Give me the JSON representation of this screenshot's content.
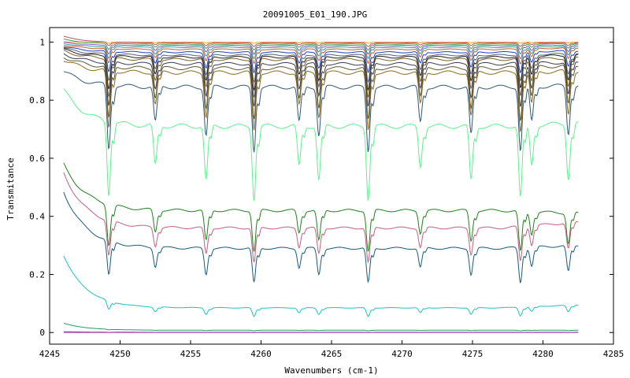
{
  "chart_data": {
    "type": "line",
    "title": "20091005_E01_190.JPG",
    "xlabel": "Wavenumbers (cm-1)",
    "ylabel": "Transmitance",
    "xlim": [
      4245,
      4285
    ],
    "ylim": [
      -0.04,
      1.05
    ],
    "grid": false,
    "legend": "none",
    "x_ticks": [
      4245,
      4250,
      4255,
      4260,
      4265,
      4270,
      4275,
      4280,
      4285
    ],
    "y_ticks": [
      0,
      0.2,
      0.4,
      0.6,
      0.8,
      1
    ],
    "x_range": [
      4246,
      4282.5
    ],
    "line_centers": [
      4249.2,
      4252.5,
      4256.1,
      4259.5,
      4262.7,
      4264.1,
      4267.6,
      4271.3,
      4274.9,
      4278.4,
      4279.2,
      4281.8
    ],
    "series": [
      {
        "color": "#e8a040",
        "start": 1.0,
        "end": 1.0,
        "level": 1.0,
        "depth": 0.004
      },
      {
        "color": "#c05060",
        "start": 1.02,
        "end": 0.998,
        "level": 0.997,
        "depth": 0.012
      },
      {
        "color": "#40a040",
        "start": 1.01,
        "end": 0.995,
        "level": 0.993,
        "depth": 0.02
      },
      {
        "color": "#8050c0",
        "start": 1.0,
        "end": 0.99,
        "level": 0.988,
        "depth": 0.03
      },
      {
        "color": "#30a0a0",
        "start": 0.995,
        "end": 0.985,
        "level": 0.982,
        "depth": 0.04
      },
      {
        "color": "#c06030",
        "start": 0.99,
        "end": 0.98,
        "level": 0.975,
        "depth": 0.05
      },
      {
        "color": "#2040c0",
        "start": 0.985,
        "end": 0.97,
        "level": 0.965,
        "depth": 0.07
      },
      {
        "color": "#506070",
        "start": 0.98,
        "end": 0.96,
        "level": 0.955,
        "depth": 0.09
      },
      {
        "color": "#202020",
        "start": 0.975,
        "end": 0.955,
        "level": 0.948,
        "depth": 0.11
      },
      {
        "color": "#7a6030",
        "start": 0.97,
        "end": 0.945,
        "level": 0.94,
        "depth": 0.13
      },
      {
        "color": "#3a3a5a",
        "start": 0.96,
        "end": 0.93,
        "level": 0.925,
        "depth": 0.15
      },
      {
        "color": "#5a5a30",
        "start": 0.95,
        "end": 0.92,
        "level": 0.91,
        "depth": 0.18
      },
      {
        "color": "#8a6a20",
        "start": 0.94,
        "end": 0.9,
        "level": 0.895,
        "depth": 0.2
      },
      {
        "color": "#305878",
        "start": 0.9,
        "end": 0.85,
        "level": 0.845,
        "depth": 0.22
      },
      {
        "color": "#60f090",
        "start": 0.835,
        "end": 0.72,
        "level": 0.71,
        "depth": 0.25
      },
      {
        "color": "#208020",
        "start": 0.58,
        "end": 0.41,
        "level": 0.42,
        "depth": 0.14
      },
      {
        "color": "#c06080",
        "start": 0.55,
        "end": 0.38,
        "level": 0.36,
        "depth": 0.12
      },
      {
        "color": "#1a5a7a",
        "start": 0.485,
        "end": 0.3,
        "level": 0.29,
        "depth": 0.12
      },
      {
        "color": "#20c0c0",
        "start": 0.265,
        "end": 0.095,
        "level": 0.085,
        "depth": 0.03
      },
      {
        "color": "#20a060",
        "start": 0.032,
        "end": 0.008,
        "level": 0.008,
        "depth": 0.002
      },
      {
        "color": "#506070",
        "start": 0.003,
        "end": 0.001,
        "level": 0.001,
        "depth": 0.001
      },
      {
        "color": "#c040c0",
        "start": 0.0,
        "end": 0.0,
        "level": 0.0,
        "depth": 0.0
      }
    ]
  }
}
